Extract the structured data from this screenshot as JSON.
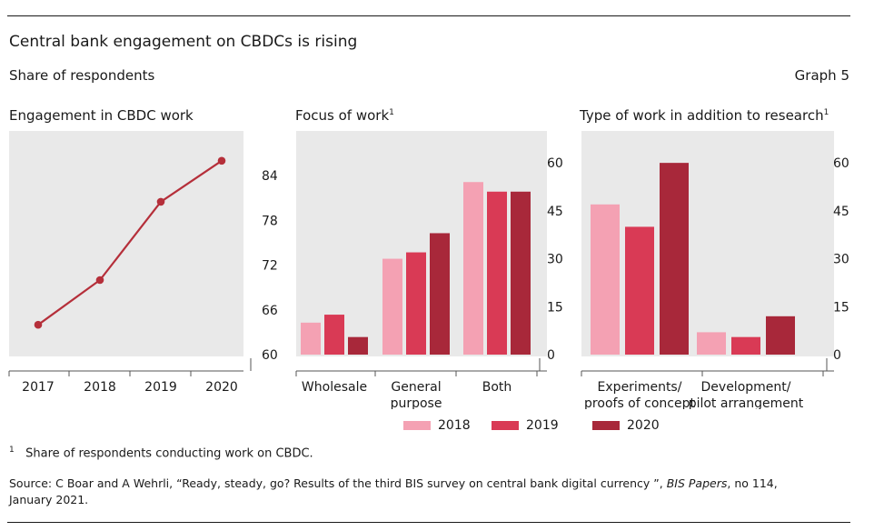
{
  "header": {
    "title": "Central bank engagement on CBDCs is rising",
    "subtitle": "Share of respondents",
    "graph_label": "Graph 5"
  },
  "colors": {
    "panel_bg": "#e9e9e9",
    "s2018": "#f4a1b3",
    "s2019": "#d93a55",
    "s2020": "#a8283a",
    "line": "#b52f3a"
  },
  "chart_data": [
    {
      "type": "line",
      "title": "Engagement in CBDC work",
      "x": [
        "2017",
        "2018",
        "2019",
        "2020"
      ],
      "values": [
        64,
        70,
        80.5,
        86
      ],
      "ylim": [
        60,
        90
      ],
      "yticks": [
        "60",
        "66",
        "72",
        "78",
        "84"
      ],
      "ytick_values": [
        60,
        66,
        72,
        78,
        84
      ],
      "y_axis": "right"
    },
    {
      "type": "bar",
      "title": "Focus of work",
      "title_note": "1",
      "categories": [
        [
          "Wholesale"
        ],
        [
          "General",
          "purpose"
        ],
        [
          "Both"
        ]
      ],
      "series": [
        {
          "name": "2018",
          "values": [
            10,
            30,
            54
          ]
        },
        {
          "name": "2019",
          "values": [
            12.5,
            32,
            51
          ]
        },
        {
          "name": "2020",
          "values": [
            5.5,
            38,
            51
          ]
        }
      ],
      "ylim": [
        0,
        70
      ],
      "yticks": [
        "0",
        "15",
        "30",
        "45",
        "60"
      ],
      "ytick_values": [
        0,
        15,
        30,
        45,
        60
      ],
      "y_axis": "right"
    },
    {
      "type": "bar",
      "title": "Type of work in addition to research",
      "title_note": "1",
      "categories": [
        [
          "Experiments/",
          "proofs of concept"
        ],
        [
          "Development/",
          "pilot arrangement"
        ]
      ],
      "series": [
        {
          "name": "2018",
          "values": [
            47,
            7
          ]
        },
        {
          "name": "2019",
          "values": [
            40,
            5.5
          ]
        },
        {
          "name": "2020",
          "values": [
            60,
            12
          ]
        }
      ],
      "ylim": [
        0,
        70
      ],
      "yticks": [
        "0",
        "15",
        "30",
        "45",
        "60"
      ],
      "ytick_values": [
        0,
        15,
        30,
        45,
        60
      ],
      "y_axis": "right"
    }
  ],
  "legend": [
    "2018",
    "2019",
    "2020"
  ],
  "footnote": {
    "marker": "1",
    "text": "Share of respondents conducting work on CBDC."
  },
  "source": {
    "line1_pre": "Source: C Boar and A Wehrli, “Ready, steady, go? Results of the third BIS survey on central bank digital currency ”, ",
    "line1_em": "BIS Papers",
    "line1_post": ", no 114,",
    "line2": "January 2021."
  }
}
